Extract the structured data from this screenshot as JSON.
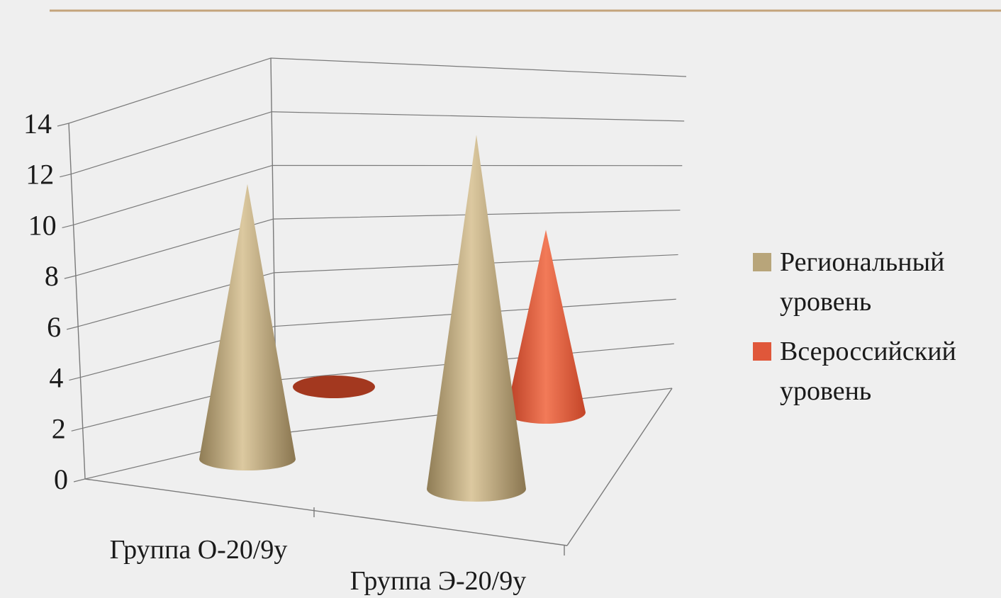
{
  "chart_data": {
    "type": "bar",
    "style": "3d-cone",
    "categories": [
      "Группа О-20/9у",
      "Группа Э-20/9у"
    ],
    "series": [
      {
        "name": "Региональный уровень",
        "values": [
          11,
          14
        ],
        "color": "#b8a57a"
      },
      {
        "name": "Всероссийский уровень",
        "values": [
          0,
          7
        ],
        "color": "#e0573a"
      }
    ],
    "yticks": [
      0,
      2,
      4,
      6,
      8,
      10,
      12,
      14
    ],
    "ylim": [
      0,
      14
    ],
    "grid": true,
    "legend_position": "right",
    "title": "",
    "xlabel": "",
    "ylabel": ""
  },
  "colors": {
    "background": "#efefef",
    "top_rule": "#c4a47c",
    "gridline": "#7a7a7a"
  }
}
